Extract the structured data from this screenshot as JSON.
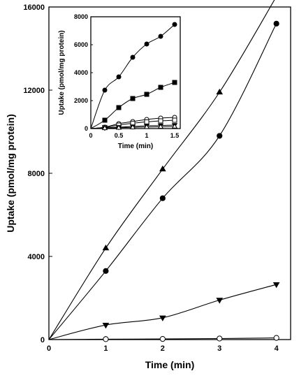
{
  "chart_data": [
    {
      "id": "main",
      "type": "scatter",
      "xlabel": "Time (min)",
      "ylabel": "Uptake (pmol/mg protein)",
      "xlim": [
        0,
        4.25
      ],
      "ylim": [
        0,
        16000
      ],
      "xticks": [
        0,
        1,
        2,
        3,
        4
      ],
      "yticks": [
        0,
        4000,
        8000,
        12000,
        16000
      ],
      "grid": false,
      "series": [
        {
          "marker": "triangle-up",
          "fill": "filled",
          "x": [
            0,
            1,
            2,
            3,
            4
          ],
          "y": [
            0,
            4400,
            8200,
            11900,
            16500
          ]
        },
        {
          "marker": "circle",
          "fill": "filled",
          "x": [
            0,
            1,
            2,
            3,
            4
          ],
          "y": [
            0,
            3300,
            6800,
            9800,
            15200
          ]
        },
        {
          "marker": "triangle-down",
          "fill": "filled",
          "x": [
            0,
            1,
            2,
            3,
            4
          ],
          "y": [
            0,
            700,
            1050,
            1900,
            2650
          ]
        },
        {
          "marker": "circle",
          "fill": "open",
          "x": [
            0,
            1,
            2,
            3,
            4
          ],
          "y": [
            0,
            20,
            30,
            50,
            80
          ]
        }
      ]
    },
    {
      "id": "inset",
      "type": "scatter",
      "xlabel": "Time (min)",
      "ylabel": "Uptake (pmol/mg protein)",
      "xlim": [
        0,
        1.6
      ],
      "ylim": [
        0,
        8000
      ],
      "xticks": [
        0,
        0.5,
        1,
        1.5
      ],
      "xtick_labels": [
        "0",
        "0.5",
        "1",
        "1.5"
      ],
      "yticks": [
        0,
        2000,
        4000,
        6000,
        8000
      ],
      "grid": false,
      "series": [
        {
          "marker": "circle",
          "fill": "filled",
          "x": [
            0,
            0.25,
            0.5,
            0.75,
            1,
            1.25,
            1.5
          ],
          "y": [
            0,
            2750,
            3700,
            5100,
            6050,
            6600,
            7450
          ]
        },
        {
          "marker": "square",
          "fill": "filled",
          "x": [
            0,
            0.25,
            0.5,
            0.75,
            1,
            1.25,
            1.5
          ],
          "y": [
            0,
            600,
            1500,
            2150,
            2450,
            2950,
            3300
          ]
        },
        {
          "marker": "circle",
          "fill": "open",
          "x": [
            0,
            0.25,
            0.5,
            0.75,
            1,
            1.25,
            1.5
          ],
          "y": [
            0,
            100,
            350,
            500,
            650,
            750,
            800
          ]
        },
        {
          "marker": "square",
          "fill": "open",
          "x": [
            0,
            0.25,
            0.5,
            0.75,
            1,
            1.25,
            1.5
          ],
          "y": [
            0,
            80,
            250,
            380,
            480,
            550,
            600
          ]
        },
        {
          "marker": "triangle-down",
          "fill": "filled",
          "x": [
            0,
            0.25,
            0.5,
            0.75,
            1,
            1.25,
            1.5
          ],
          "y": [
            0,
            50,
            100,
            150,
            200,
            220,
            250
          ]
        },
        {
          "marker": "triangle-up",
          "fill": "open",
          "x": [
            0,
            0.25,
            0.5,
            0.75,
            1,
            1.25,
            1.5
          ],
          "y": [
            0,
            30,
            60,
            90,
            110,
            130,
            150
          ]
        }
      ]
    }
  ]
}
